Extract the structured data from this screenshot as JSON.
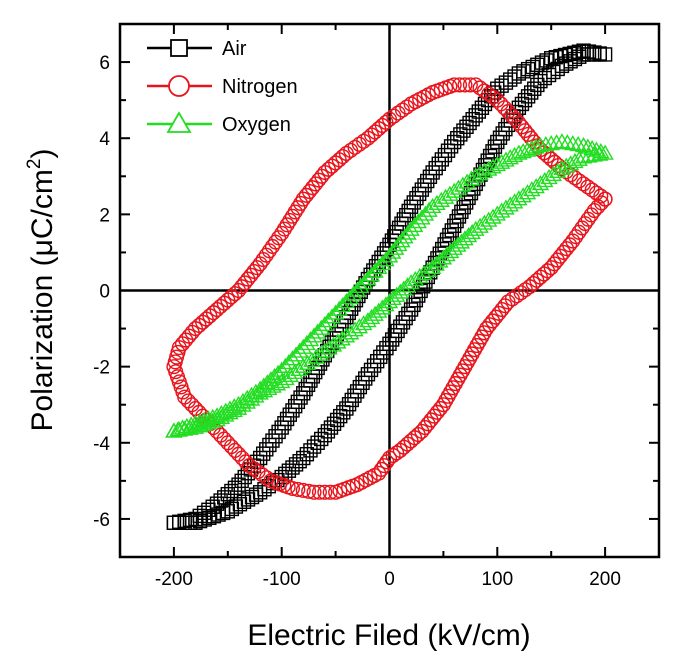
{
  "chart_data": {
    "type": "scatter",
    "xlabel": "Electric Filed (kV/cm)",
    "ylabel": {
      "main": "Polarization (",
      "mu": "μ",
      "unit": "C/cm",
      "sup": "2",
      "close": ")"
    },
    "xlim": [
      -250,
      250
    ],
    "ylim": [
      -7,
      7
    ],
    "x_ticks": [
      "-200",
      "-100",
      "0",
      "100",
      "200"
    ],
    "y_ticks": [
      "-6",
      "-4",
      "-2",
      "0",
      "2",
      "4",
      "6"
    ],
    "legend_position": "top-left",
    "zero_lines": true,
    "series": [
      {
        "name": "Air",
        "marker": "square",
        "color": "#000000",
        "loop": [
          [
            -200,
            -6.1
          ],
          [
            -180,
            -6.1
          ],
          [
            -150,
            -5.8
          ],
          [
            -120,
            -5.3
          ],
          [
            -100,
            -4.9
          ],
          [
            -80,
            -4.4
          ],
          [
            -60,
            -3.8
          ],
          [
            -40,
            -3.1
          ],
          [
            -20,
            -2.2
          ],
          [
            0,
            -1.4
          ],
          [
            20,
            -0.5
          ],
          [
            40,
            0.6
          ],
          [
            60,
            1.7
          ],
          [
            80,
            2.8
          ],
          [
            100,
            3.9
          ],
          [
            120,
            4.8
          ],
          [
            140,
            5.5
          ],
          [
            160,
            5.9
          ],
          [
            180,
            6.2
          ],
          [
            200,
            6.2
          ],
          [
            180,
            6.3
          ],
          [
            150,
            6.1
          ],
          [
            120,
            5.7
          ],
          [
            100,
            5.3
          ],
          [
            80,
            4.6
          ],
          [
            60,
            3.9
          ],
          [
            40,
            3.1
          ],
          [
            20,
            2.2
          ],
          [
            0,
            1.2
          ],
          [
            -20,
            0.3
          ],
          [
            -40,
            -0.7
          ],
          [
            -60,
            -1.7
          ],
          [
            -80,
            -2.7
          ],
          [
            -100,
            -3.6
          ],
          [
            -120,
            -4.4
          ],
          [
            -140,
            -5.1
          ],
          [
            -160,
            -5.6
          ],
          [
            -180,
            -6.0
          ],
          [
            -200,
            -6.1
          ]
        ]
      },
      {
        "name": "Nitrogen",
        "marker": "circle",
        "color": "#e8141c",
        "loop": [
          [
            200,
            2.4
          ],
          [
            190,
            2.1
          ],
          [
            170,
            1.3
          ],
          [
            150,
            0.6
          ],
          [
            130,
            0.1
          ],
          [
            110,
            -0.3
          ],
          [
            90,
            -1.0
          ],
          [
            70,
            -2.0
          ],
          [
            50,
            -3.0
          ],
          [
            30,
            -3.7
          ],
          [
            10,
            -4.2
          ],
          [
            0,
            -4.4
          ],
          [
            -10,
            -4.8
          ],
          [
            -30,
            -5.1
          ],
          [
            -50,
            -5.3
          ],
          [
            -70,
            -5.3
          ],
          [
            -90,
            -5.2
          ],
          [
            -110,
            -5.0
          ],
          [
            -130,
            -4.6
          ],
          [
            -150,
            -4.0
          ],
          [
            -170,
            -3.4
          ],
          [
            -190,
            -2.8
          ],
          [
            -200,
            -2.0
          ],
          [
            -195,
            -1.5
          ],
          [
            -180,
            -1.0
          ],
          [
            -160,
            -0.5
          ],
          [
            -140,
            0.0
          ],
          [
            -120,
            0.7
          ],
          [
            -100,
            1.5
          ],
          [
            -80,
            2.4
          ],
          [
            -60,
            3.1
          ],
          [
            -40,
            3.6
          ],
          [
            -20,
            4.0
          ],
          [
            0,
            4.5
          ],
          [
            20,
            4.9
          ],
          [
            40,
            5.2
          ],
          [
            60,
            5.4
          ],
          [
            80,
            5.4
          ],
          [
            100,
            5.0
          ],
          [
            120,
            4.4
          ],
          [
            140,
            3.7
          ],
          [
            160,
            3.2
          ],
          [
            180,
            2.8
          ],
          [
            200,
            2.4
          ]
        ]
      },
      {
        "name": "Oxygen",
        "marker": "triangle",
        "color": "#22dd22",
        "loop": [
          [
            -200,
            -3.7
          ],
          [
            -180,
            -3.6
          ],
          [
            -160,
            -3.4
          ],
          [
            -140,
            -3.1
          ],
          [
            -120,
            -2.7
          ],
          [
            -100,
            -2.4
          ],
          [
            -80,
            -2.0
          ],
          [
            -60,
            -1.6
          ],
          [
            -40,
            -1.2
          ],
          [
            -20,
            -0.8
          ],
          [
            0,
            -0.3
          ],
          [
            20,
            0.2
          ],
          [
            40,
            0.6
          ],
          [
            60,
            1.1
          ],
          [
            80,
            1.6
          ],
          [
            100,
            2.0
          ],
          [
            120,
            2.4
          ],
          [
            140,
            2.8
          ],
          [
            160,
            3.2
          ],
          [
            180,
            3.5
          ],
          [
            200,
            3.6
          ],
          [
            180,
            3.8
          ],
          [
            160,
            3.9
          ],
          [
            140,
            3.8
          ],
          [
            120,
            3.6
          ],
          [
            100,
            3.3
          ],
          [
            80,
            3.0
          ],
          [
            60,
            2.6
          ],
          [
            40,
            2.2
          ],
          [
            20,
            1.6
          ],
          [
            0,
            0.9
          ],
          [
            -20,
            0.3
          ],
          [
            -40,
            -0.3
          ],
          [
            -60,
            -0.9
          ],
          [
            -80,
            -1.5
          ],
          [
            -100,
            -2.1
          ],
          [
            -120,
            -2.6
          ],
          [
            -140,
            -3.0
          ],
          [
            -160,
            -3.3
          ],
          [
            -180,
            -3.5
          ],
          [
            -200,
            -3.7
          ]
        ]
      }
    ]
  }
}
